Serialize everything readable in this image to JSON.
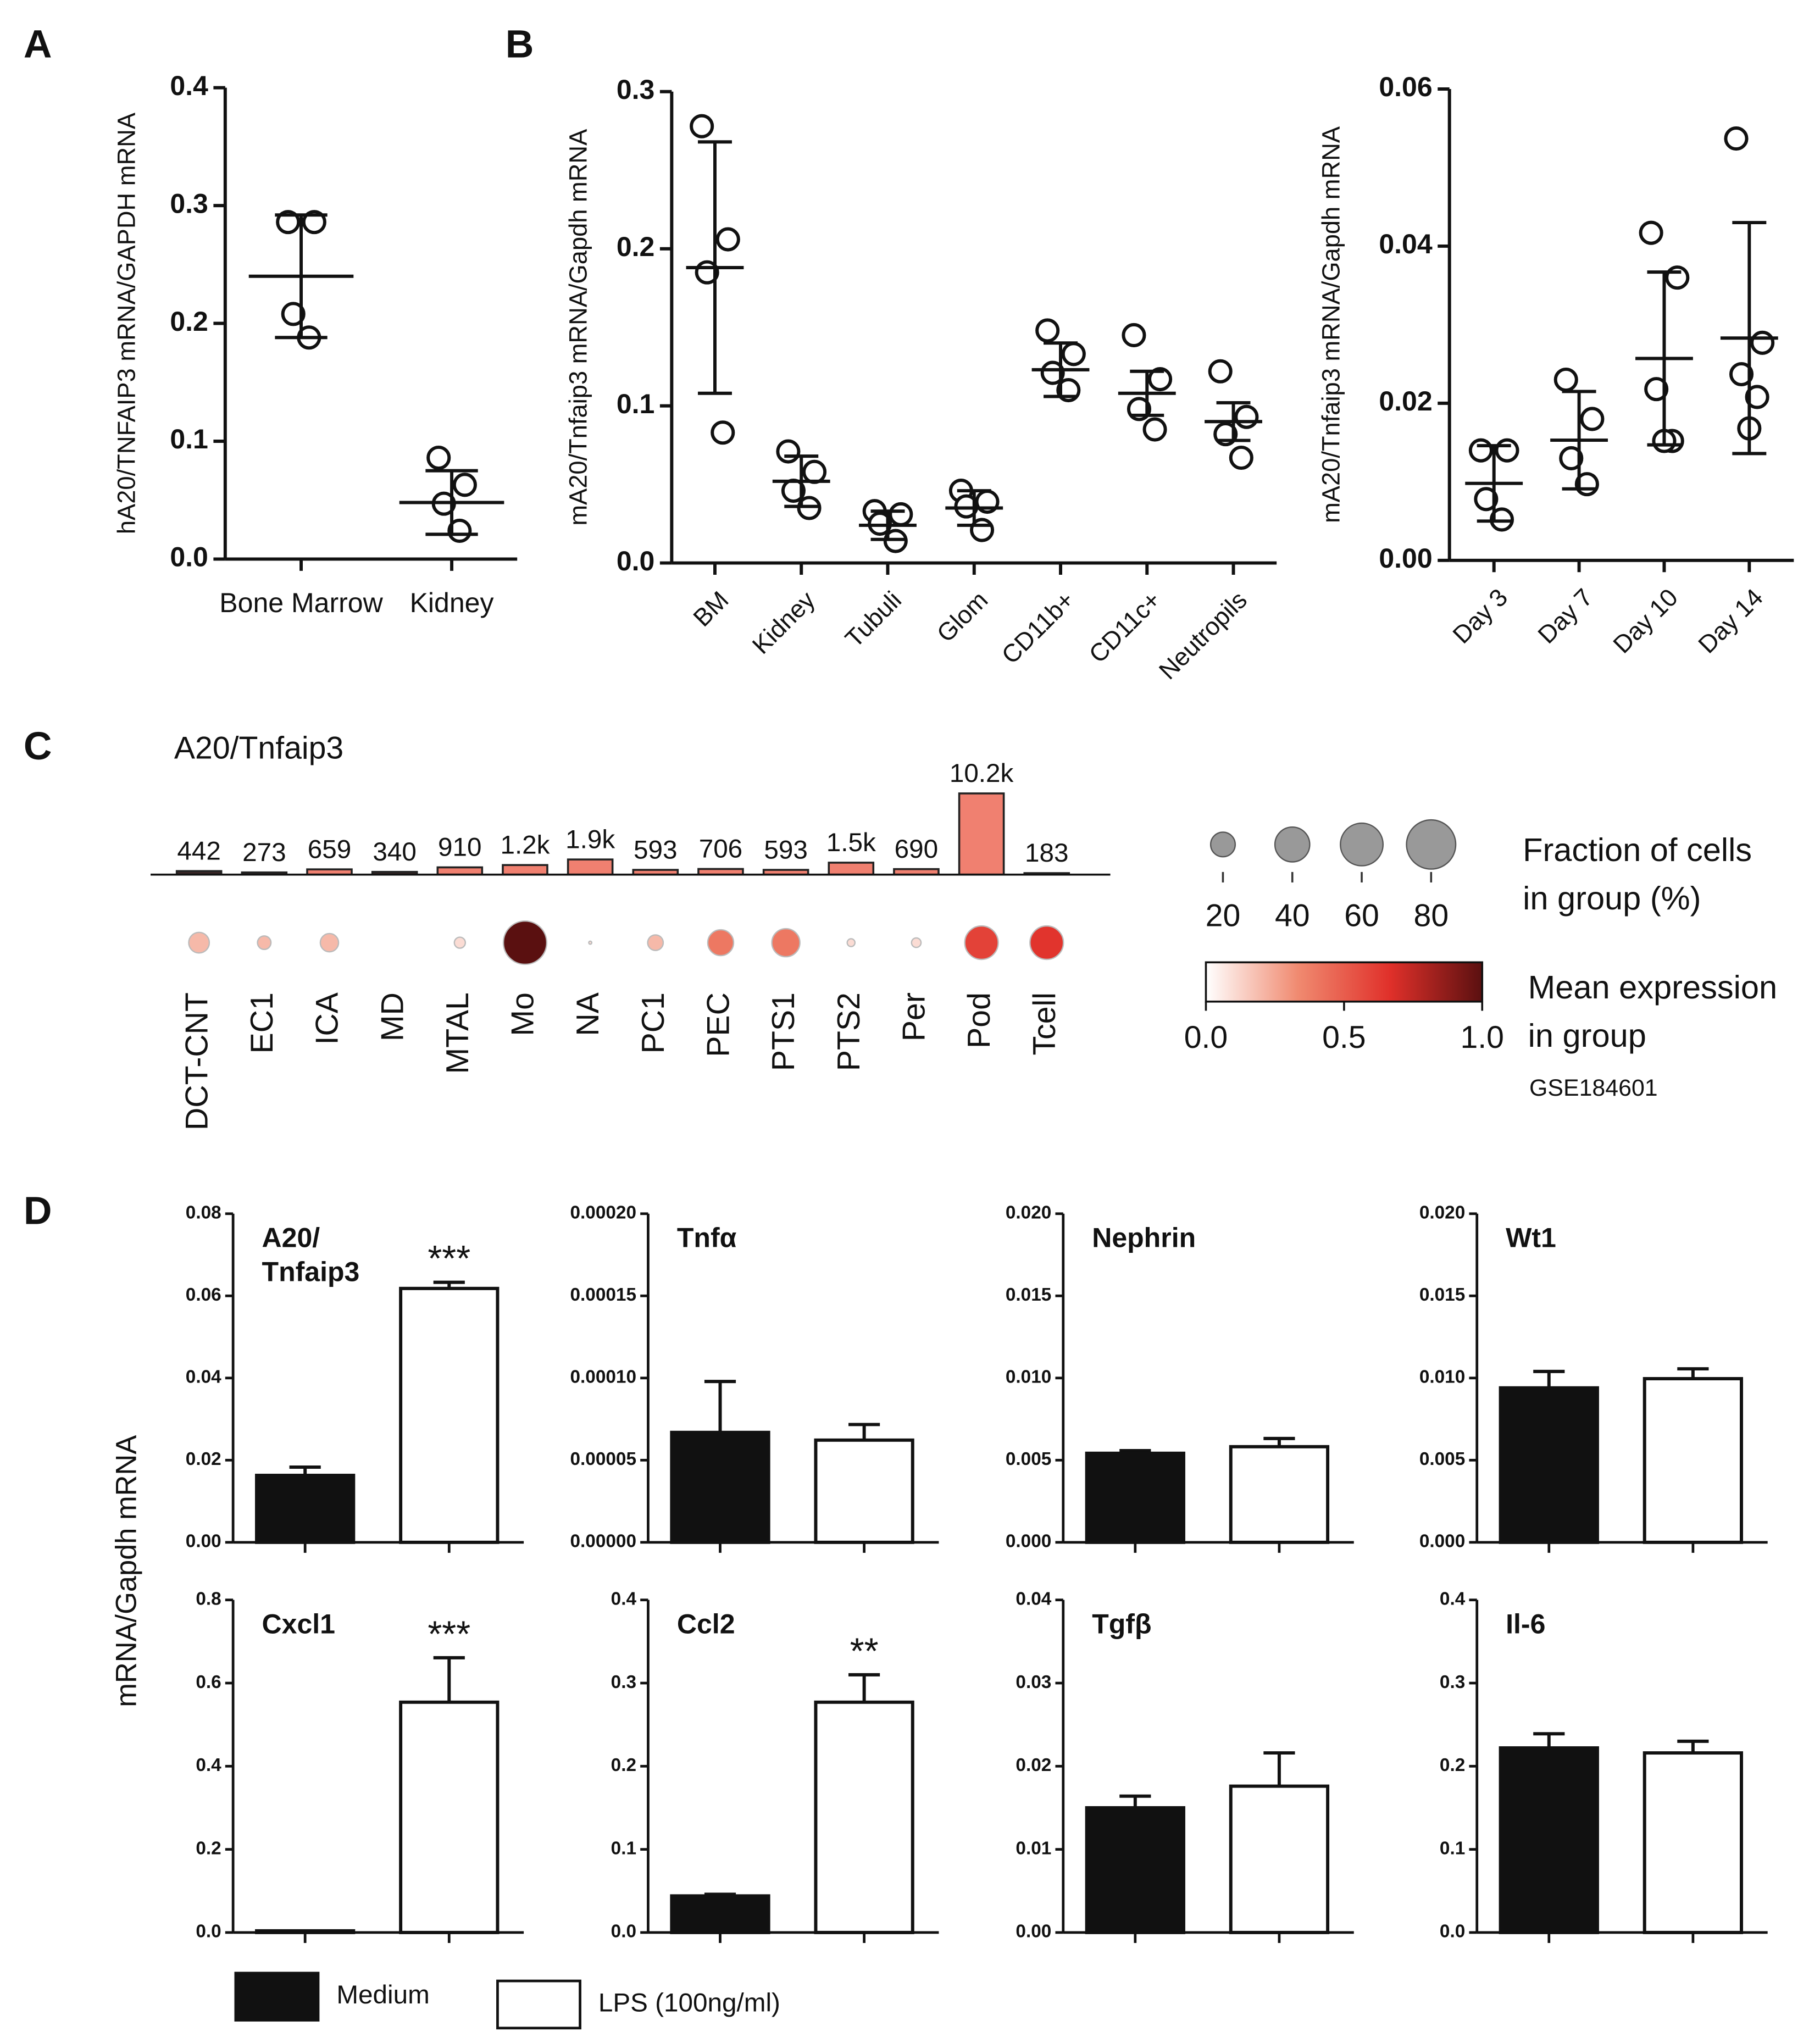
{
  "chart_data": [
    {
      "type": "dot",
      "panel": "A",
      "ylabel": "hA20/TNFAIP3 mRNA/GAPDH mRNA",
      "categories": [
        "Bone Marrow",
        "Kidney"
      ],
      "points": [
        [
          0.286,
          0.286,
          0.208,
          0.188
        ],
        [
          0.086,
          0.063,
          0.047,
          0.024
        ]
      ],
      "mean": [
        0.24,
        0.048
      ],
      "sd": [
        0.052,
        0.027
      ],
      "ylim": [
        0,
        0.4
      ],
      "yticks": [
        {
          "value": 0,
          "label": "0.0"
        },
        0.1,
        0.2,
        0.3,
        0.4
      ]
    },
    {
      "type": "dot",
      "panel": "B",
      "ylabel": "mA20/Tnfaip3 mRNA/Gapdh mRNA",
      "categories": [
        "BM",
        "Kidney",
        "Tubuli",
        "Glom",
        "CD11b+",
        "CD11c+",
        "Neutropils"
      ],
      "points": [
        [
          0.278,
          0.206,
          0.185,
          0.083
        ],
        [
          0.071,
          0.058,
          0.046,
          0.035
        ],
        [
          0.033,
          0.031,
          0.025,
          0.014
        ],
        [
          0.046,
          0.039,
          0.036,
          0.021
        ],
        [
          0.148,
          0.133,
          0.121,
          0.11
        ],
        [
          0.145,
          0.117,
          0.098,
          0.085
        ],
        [
          0.122,
          0.093,
          0.082,
          0.067
        ]
      ],
      "mean": [
        0.188,
        0.052,
        0.024,
        0.035,
        0.123,
        0.108,
        0.09
      ],
      "sd": [
        0.08,
        0.016,
        0.009,
        0.011,
        0.017,
        0.014,
        0.012
      ],
      "ylim": [
        0,
        0.3
      ],
      "yticks": [
        {
          "value": 0,
          "label": "0.0"
        },
        0.1,
        0.2,
        0.3
      ]
    },
    {
      "type": "dot",
      "ylabel": "mA20/Tnfaip3 mRNA/Gapdh mRNA",
      "categories": [
        "Day 3",
        "Day 7",
        "Day 10",
        "Day 14"
      ],
      "points": [
        [
          0.014,
          0.014,
          0.0078,
          0.0052
        ],
        [
          0.023,
          0.018,
          0.013,
          0.0097
        ],
        [
          0.0417,
          0.036,
          0.0218,
          0.0152,
          0.0152
        ],
        [
          0.0537,
          0.0277,
          0.0237,
          0.0208,
          0.0168
        ]
      ],
      "mean": [
        0.0098,
        0.0153,
        0.0257,
        0.0283
      ],
      "sd": [
        0.0048,
        0.0062,
        0.011,
        0.0147
      ],
      "ylim": [
        0,
        0.06
      ],
      "yticks": [
        {
          "value": 0,
          "label": "0.00"
        },
        0.02,
        0.04,
        0.06
      ]
    },
    {
      "type": "dotplot",
      "panel": "C",
      "title": "A20/Tnfaip3",
      "categories": [
        "DCT-CNT",
        "EC1",
        "ICA",
        "MD",
        "MTAL",
        "Mo",
        "NA",
        "PC1",
        "PEC",
        "PTS1",
        "PTS2",
        "Per",
        "Pod",
        "Tcell"
      ],
      "values": [
        442,
        273,
        659,
        340,
        910,
        1200,
        1900,
        593,
        706,
        593,
        1500,
        690,
        10200,
        183
      ],
      "value_labels": [
        "442",
        "273",
        "659",
        "340",
        "910",
        "1.2k",
        "1.9k",
        "593",
        "706",
        "593",
        "1.5k",
        "690",
        "10.2k",
        "183"
      ],
      "colors": [
        "#3a2626",
        "#3a2626",
        "#f08070",
        "#3a2626",
        "#f08070",
        "#f08070",
        "#f08070",
        "#f08070",
        "#f08070",
        "#f08070",
        "#f08070",
        "#f08070",
        "#f08070",
        "#3a2626"
      ],
      "fraction": [
        14,
        6,
        11,
        0,
        4,
        62,
        0.3,
        8,
        22,
        26,
        2,
        3,
        37,
        37
      ],
      "expression": [
        0.2,
        0.2,
        0.2,
        0,
        0.1,
        1,
        0.1,
        0.2,
        0.4,
        0.4,
        0.1,
        0.1,
        0.6,
        0.65
      ],
      "size_title": [
        "Fraction of cells",
        "in group (%)"
      ],
      "size_ticks": [
        20,
        40,
        60,
        80
      ],
      "color_title": [
        "Mean expression",
        "in group"
      ],
      "clim": [
        0,
        1
      ],
      "cticks": [
        {
          "value": 0,
          "label": "0.0"
        },
        0.5,
        {
          "value": 1,
          "label": "1.0"
        }
      ],
      "colormap": [
        "#ffffff",
        "#f08a70",
        "#e0302a",
        "#5a1010"
      ],
      "source": "GSE184601"
    },
    {
      "type": "bar_panels",
      "panel": "D",
      "ylabel": "mRNA/Gapdh mRNA",
      "series": [
        {
          "name": "Medium",
          "color": "#111111"
        },
        {
          "name": "LPS (100ng/ml)",
          "color": "#ffffff"
        }
      ],
      "panels": [
        {
          "title": [
            "A20/",
            "Tnfaip3"
          ],
          "values": [
            0.0163,
            0.0618
          ],
          "errors": [
            0.002,
            0.0015
          ],
          "annotation": "***",
          "ylim": [
            0,
            0.08
          ],
          "yticks": [
            {
              "value": 0,
              "label": "0.00"
            },
            0.02,
            0.04,
            0.06,
            0.08
          ]
        },
        {
          "title": [
            "Tnfα"
          ],
          "values": [
            6.69e-05,
            6.22e-05
          ],
          "errors": [
            3.1e-05,
            9.5e-06
          ],
          "ylim": [
            0,
            0.0002
          ],
          "yticks": [
            {
              "value": 0,
              "label": "0.00000"
            },
            5e-05,
            {
              "value": 0.0001,
              "label": "0.00010"
            },
            0.00015,
            {
              "value": 0.0002,
              "label": "0.00020"
            }
          ]
        },
        {
          "title": [
            "Nephrin"
          ],
          "values": [
            0.00542,
            0.00582
          ],
          "errors": [
            0.00016,
            0.0005
          ],
          "ylim": [
            0,
            0.02
          ],
          "yticks": [
            {
              "value": 0,
              "label": "0.000"
            },
            0.005,
            {
              "value": 0.01,
              "label": "0.010"
            },
            0.015,
            {
              "value": 0.02,
              "label": "0.020"
            }
          ]
        },
        {
          "title": [
            "Wt1"
          ],
          "values": [
            0.0094,
            0.00996
          ],
          "errors": [
            0.001,
            0.0006
          ],
          "ylim": [
            0,
            0.02
          ],
          "yticks": [
            {
              "value": 0,
              "label": "0.000"
            },
            0.005,
            {
              "value": 0.01,
              "label": "0.010"
            },
            0.015,
            {
              "value": 0.02,
              "label": "0.020"
            }
          ]
        },
        {
          "title": [
            "Cxcl1"
          ],
          "values": [
            0.004,
            0.554
          ],
          "errors": [
            0,
            0.107
          ],
          "annotation": "***",
          "ylim": [
            0,
            0.8
          ],
          "yticks": [
            {
              "value": 0,
              "label": "0.0"
            },
            0.2,
            0.4,
            0.6,
            0.8
          ]
        },
        {
          "title": [
            "Ccl2"
          ],
          "values": [
            0.044,
            0.277
          ],
          "errors": [
            0.002,
            0.033
          ],
          "annotation": "**",
          "ylim": [
            0,
            0.4
          ],
          "yticks": [
            {
              "value": 0,
              "label": "0.0"
            },
            0.1,
            0.2,
            0.3,
            0.4
          ]
        },
        {
          "title": [
            "Tgfβ"
          ],
          "values": [
            0.015,
            0.0176
          ],
          "errors": [
            0.0014,
            0.004
          ],
          "ylim": [
            0,
            0.04
          ],
          "yticks": [
            {
              "value": 0,
              "label": "0.00"
            },
            0.01,
            0.02,
            0.03,
            0.04
          ]
        },
        {
          "title": [
            "Il-6"
          ],
          "values": [
            0.222,
            0.216
          ],
          "errors": [
            0.017,
            0.014
          ],
          "ylim": [
            0,
            0.4
          ],
          "yticks": [
            {
              "value": 0,
              "label": "0.0"
            },
            0.1,
            0.2,
            0.3,
            0.4
          ]
        }
      ]
    }
  ]
}
